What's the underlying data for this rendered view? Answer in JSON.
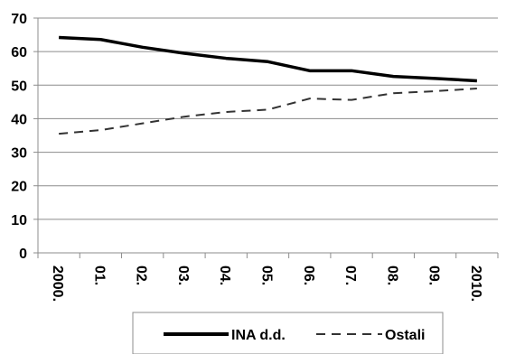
{
  "chart_data": {
    "type": "line",
    "categories": [
      "2000.",
      "01.",
      "02.",
      "03.",
      "04.",
      "05.",
      "06.",
      "07.",
      "08.",
      "09.",
      "2010."
    ],
    "series": [
      {
        "name": "INA d.d.",
        "values": [
          64.2,
          63.6,
          61.3,
          59.5,
          58.0,
          57.0,
          54.3,
          54.3,
          52.6,
          52.0,
          51.3
        ],
        "color": "#000000",
        "style": "solid"
      },
      {
        "name": "Ostali",
        "values": [
          35.5,
          36.6,
          38.6,
          40.6,
          42.0,
          42.7,
          46.0,
          45.6,
          47.6,
          48.2,
          49.0
        ],
        "color": "#333333",
        "style": "dashed"
      }
    ],
    "yticks": [
      "0",
      "10",
      "20",
      "30",
      "40",
      "50",
      "60",
      "70"
    ],
    "ylim": [
      0,
      70
    ],
    "grid": true,
    "legend": "bottom",
    "title": "",
    "xlabel": "",
    "ylabel": ""
  }
}
